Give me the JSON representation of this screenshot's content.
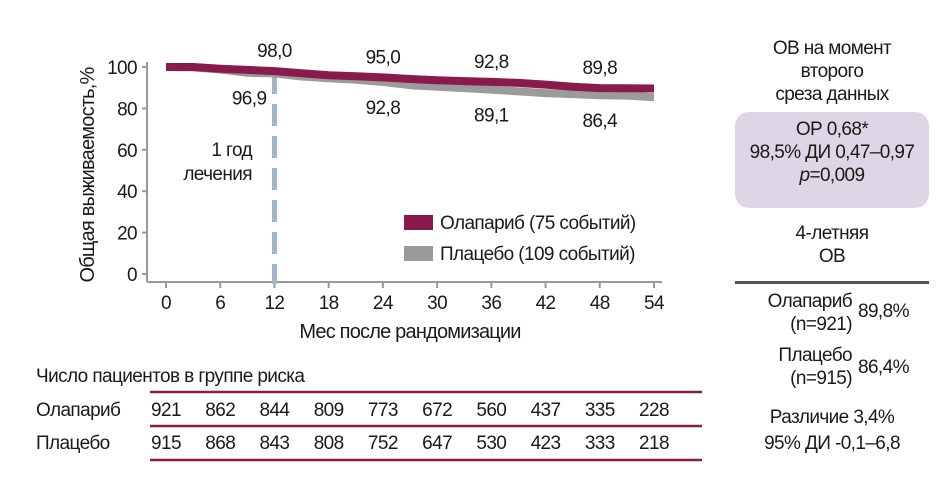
{
  "colors": {
    "olaparib": "#8a1a4b",
    "placebo": "#9b9b9b",
    "dashed": "#a3b5cc",
    "hr_box": "#ddd6e6",
    "risk_lines": "#8a1a4b"
  },
  "chart_data": {
    "type": "line",
    "title": "",
    "xlabel": "Мес после рандомизации",
    "ylabel": "Общая выживаемость,%",
    "xlim": [
      0,
      54
    ],
    "ylim": [
      0,
      100
    ],
    "x_ticks": [
      0,
      6,
      12,
      18,
      24,
      30,
      36,
      42,
      48,
      54
    ],
    "y_ticks": [
      0,
      20,
      40,
      60,
      80,
      100
    ],
    "legend_position": "bottom-right",
    "series": [
      {
        "name": "Олапариб (75 событий)",
        "key": "olaparib",
        "x": [
          0,
          3,
          6,
          9,
          12,
          15,
          18,
          21,
          24,
          27,
          30,
          33,
          36,
          39,
          42,
          45,
          48,
          51,
          54
        ],
        "y": [
          100,
          100,
          99.2,
          98.6,
          98.0,
          97.0,
          96.0,
          95.5,
          95.0,
          94.2,
          93.6,
          93.2,
          92.8,
          92.3,
          91.5,
          90.5,
          89.8,
          89.7,
          89.6
        ]
      },
      {
        "name": "Плацебо (109 событий)",
        "key": "placebo",
        "x": [
          0,
          3,
          6,
          9,
          12,
          15,
          18,
          21,
          24,
          27,
          30,
          33,
          36,
          39,
          42,
          45,
          48,
          51,
          54
        ],
        "y": [
          100,
          99.8,
          98.8,
          97.2,
          96.9,
          95.4,
          94.6,
          93.8,
          92.8,
          91.2,
          90.5,
          89.8,
          89.1,
          88.2,
          87.4,
          86.9,
          86.4,
          86.2,
          85.4
        ]
      }
    ],
    "annotations": [
      {
        "x": 12,
        "y": 98.0,
        "text": "98,0",
        "pos": "above"
      },
      {
        "x": 12,
        "y": 96.9,
        "text": "96,9",
        "pos": "below-left"
      },
      {
        "x": 24,
        "y": 95.0,
        "text": "95,0",
        "pos": "above"
      },
      {
        "x": 24,
        "y": 92.8,
        "text": "92,8",
        "pos": "below"
      },
      {
        "x": 36,
        "y": 92.8,
        "text": "92,8",
        "pos": "above"
      },
      {
        "x": 36,
        "y": 89.1,
        "text": "89,1",
        "pos": "below"
      },
      {
        "x": 48,
        "y": 89.8,
        "text": "89,8",
        "pos": "above"
      },
      {
        "x": 48,
        "y": 86.4,
        "text": "86,4",
        "pos": "below"
      }
    ],
    "vline": {
      "x": 12,
      "label_lines": [
        "1 год",
        "лечения"
      ]
    }
  },
  "risk_table": {
    "title": "Число пациентов в группе риска",
    "rows": [
      {
        "label": "Олапариб",
        "values": [
          921,
          862,
          844,
          809,
          773,
          672,
          560,
          437,
          335,
          228
        ]
      },
      {
        "label": "Плацебо",
        "values": [
          915,
          868,
          843,
          808,
          752,
          647,
          530,
          423,
          333,
          218
        ]
      }
    ]
  },
  "summary": {
    "title_lines": [
      "ОВ на момент",
      "второго",
      "среза данных"
    ],
    "hr": "ОР 0,68*",
    "ci": "98,5% ДИ 0,47–0,97",
    "p_label": "p",
    "p_value": "=0,009",
    "four_year_lines": [
      "4-летняя",
      "ОВ"
    ],
    "olaparib_label": "Олапариб",
    "olaparib_n": "(n=921)",
    "olaparib_value": "89,8%",
    "placebo_label": "Плацебо",
    "placebo_n": "(n=915)",
    "placebo_value": "86,4%",
    "difference": "Различие 3,4%",
    "difference_ci": "95% ДИ -0,1–6,8"
  }
}
